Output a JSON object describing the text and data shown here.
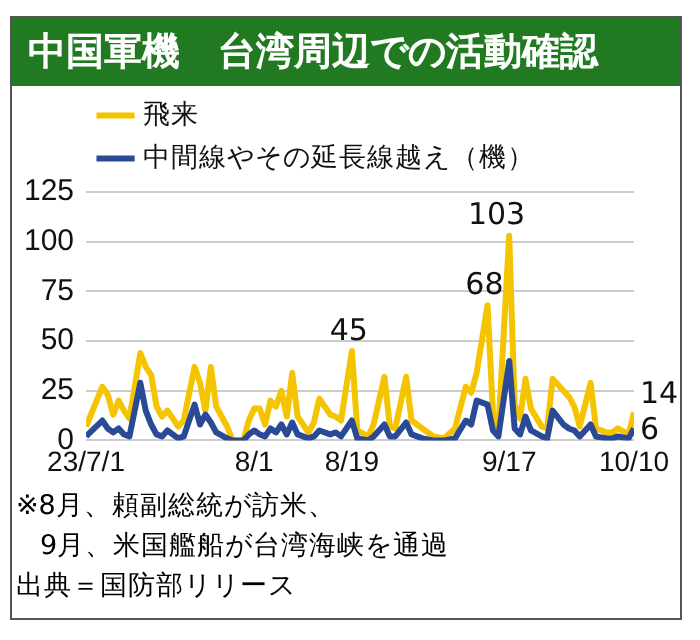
{
  "chart_data": {
    "type": "line",
    "title": "中国軍機　台湾周辺での活動確認",
    "x": [
      "--07-01",
      "--07-04",
      "--07-05",
      "--07-06",
      "--07-07",
      "--07-08",
      "--07-09",
      "--07-11",
      "--07-12",
      "--07-13",
      "--07-14",
      "--07-15",
      "--07-16",
      "--07-18",
      "--07-19",
      "--07-21",
      "--07-22",
      "--07-23",
      "--07-24",
      "--07-25",
      "--07-27",
      "--07-28",
      "--07-30",
      "--07-31",
      "--08-01",
      "--08-02",
      "--08-03",
      "--08-04",
      "--08-05",
      "--08-06",
      "--08-07",
      "--08-08",
      "--08-09",
      "--08-11",
      "--08-12",
      "--08-13",
      "--08-15",
      "--08-16",
      "--08-17",
      "--08-19",
      "--08-20",
      "--08-22",
      "--08-23",
      "--08-25",
      "--08-26",
      "--08-27",
      "--08-29",
      "--08-30",
      "--09-01",
      "--09-03",
      "--09-05",
      "--09-07",
      "--09-09",
      "--09-10",
      "--09-11",
      "--09-13",
      "--09-14",
      "--09-15",
      "--09-17",
      "--09-18",
      "--09-19",
      "--09-20",
      "--09-21",
      "--09-23",
      "--09-24",
      "--09-25",
      "--09-27",
      "--09-28",
      "--09-29",
      "--09-30",
      "--10-02",
      "--10-03",
      "--10-05",
      "--10-06",
      "--10-07",
      "--10-09",
      "--10-10"
    ],
    "series": [
      {
        "name": "飛来",
        "color": "#f5c400",
        "values": [
          7,
          27,
          23,
          13,
          20,
          15,
          11,
          44,
          37,
          33,
          17,
          12,
          15,
          7,
          10,
          37,
          29,
          15,
          37,
          17,
          7,
          0,
          0,
          10,
          16,
          16,
          8,
          20,
          17,
          25,
          12,
          34,
          12,
          4,
          9,
          21,
          13,
          12,
          10,
          45,
          5,
          2,
          8,
          32,
          7,
          6,
          32,
          10,
          6,
          2,
          1,
          6,
          27,
          24,
          34,
          68,
          14,
          6,
          103,
          18,
          11,
          31,
          16,
          7,
          6,
          31,
          25,
          22,
          17,
          7,
          29,
          6,
          4,
          4,
          6,
          3,
          14
        ]
      },
      {
        "name": "中間線やその延長線越え（機）",
        "color": "#2b4a96",
        "values": [
          2,
          10,
          6,
          4,
          6,
          3,
          2,
          29,
          15,
          8,
          3,
          2,
          5,
          1,
          2,
          18,
          8,
          13,
          9,
          4,
          1,
          0,
          0,
          3,
          5,
          3,
          2,
          6,
          4,
          8,
          3,
          9,
          3,
          1,
          2,
          5,
          3,
          4,
          2,
          10,
          1,
          0,
          2,
          8,
          2,
          2,
          9,
          3,
          1,
          0,
          0,
          1,
          10,
          8,
          20,
          18,
          5,
          2,
          40,
          6,
          3,
          12,
          5,
          2,
          1,
          15,
          8,
          6,
          5,
          2,
          8,
          2,
          1,
          1,
          2,
          1,
          6
        ]
      }
    ],
    "xlim": [
      "--07-01",
      "--10-10"
    ],
    "xticks": [
      {
        "value": "--07-01",
        "label": "23/7/1"
      },
      {
        "value": "--08-01",
        "label": "8/1"
      },
      {
        "value": "--08-19",
        "label": "8/19"
      },
      {
        "value": "--09-17",
        "label": "9/17"
      },
      {
        "value": "--10-10",
        "label": "10/10"
      }
    ],
    "ylim": [
      0,
      125
    ],
    "yticks": [
      0,
      25,
      50,
      75,
      100,
      125
    ],
    "grid": "y",
    "legend": "top left",
    "marker": "none",
    "line_style": "solid",
    "annotations": [
      {
        "text": "45",
        "x": "--08-19",
        "y": 45
      },
      {
        "text": "68",
        "x": "--09-13",
        "y": 68
      },
      {
        "text": "103",
        "x": "--09-17",
        "y": 103
      },
      {
        "text": "14",
        "x": "--10-10",
        "y": 14
      },
      {
        "text": "6",
        "x": "--10-10",
        "y": 6
      },
      "※8月、頼副総統が訪米、",
      "9月、米国艦船が台湾海峡を通過",
      "出典＝国防部リリース"
    ]
  }
}
